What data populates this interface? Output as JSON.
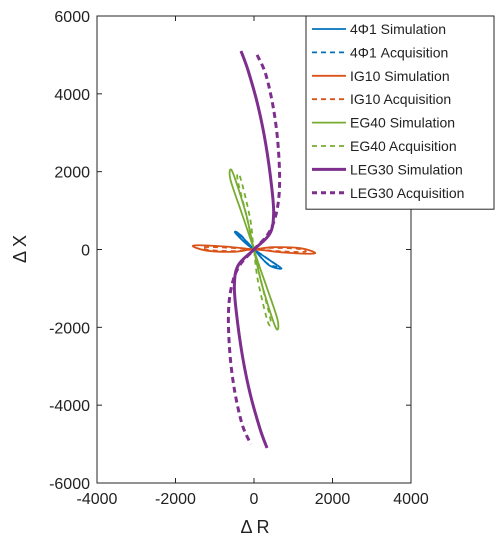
{
  "chart_data": {
    "type": "line",
    "title": "",
    "xlabel": "Δ R",
    "ylabel": "Δ X",
    "xlim": [
      -4000,
      4000
    ],
    "ylim": [
      -6000,
      6000
    ],
    "xticks": [
      -4000,
      -2000,
      0,
      2000,
      4000
    ],
    "yticks": [
      -6000,
      -4000,
      -2000,
      0,
      2000,
      4000,
      6000
    ],
    "xtick_labels": [
      "-4000",
      "-2000",
      "0",
      "2000",
      "4000"
    ],
    "ytick_labels": [
      "-6000",
      "-4000",
      "-2000",
      "0",
      "2000",
      "4000",
      "6000"
    ],
    "grid": false,
    "legend_position": "top-right",
    "series": [
      {
        "name": "4Φ1 Simulation",
        "color": "#0072BD",
        "dash": "solid",
        "x": [
          0,
          -200,
          -480,
          -380,
          0,
          380,
          700,
          420,
          0
        ],
        "y": [
          0,
          150,
          430,
          400,
          0,
          -400,
          -490,
          -290,
          0
        ]
      },
      {
        "name": "4Φ1 Acquisition",
        "color": "#0072BD",
        "dash": "dashed",
        "x": [
          0,
          -180,
          -420,
          -340,
          0,
          340,
          620,
          380,
          0
        ],
        "y": [
          0,
          140,
          390,
          370,
          0,
          -360,
          -440,
          -260,
          0
        ]
      },
      {
        "name": "IG10 Simulation",
        "color": "#D95319",
        "dash": "solid",
        "x": [
          0,
          -800,
          -1550,
          -1200,
          -500,
          0,
          800,
          1550,
          1200,
          500,
          0
        ],
        "y": [
          0,
          80,
          100,
          -30,
          -60,
          0,
          -80,
          -100,
          30,
          60,
          0
        ]
      },
      {
        "name": "IG10 Acquisition",
        "color": "#D95319",
        "dash": "dashed",
        "x": [
          0,
          -700,
          -1300,
          -1100,
          -400,
          0,
          700,
          1300,
          1100,
          400,
          0
        ],
        "y": [
          0,
          50,
          60,
          -20,
          -40,
          0,
          -50,
          -60,
          20,
          40,
          0
        ]
      },
      {
        "name": "EG40 Simulation",
        "color": "#77AC30",
        "dash": "solid",
        "x": [
          0,
          -300,
          -600,
          -550,
          -200,
          0,
          300,
          600,
          550,
          200,
          0
        ],
        "y": [
          0,
          900,
          1800,
          2000,
          900,
          0,
          -900,
          -1800,
          -2000,
          -900,
          0
        ]
      },
      {
        "name": "EG40 Acquisition",
        "color": "#77AC30",
        "dash": "dashed",
        "x": [
          0,
          -200,
          -420,
          -350,
          -100,
          0,
          200,
          420,
          350,
          100,
          0
        ],
        "y": [
          0,
          900,
          1800,
          1850,
          800,
          0,
          -900,
          -1800,
          -1850,
          -800,
          0
        ]
      },
      {
        "name": "LEG30 Simulation",
        "color": "#7E2F8E",
        "dash": "solid",
        "x": [
          -330,
          -150,
          100,
          300,
          450,
          500,
          400,
          0,
          -400,
          -500,
          -450,
          -300,
          -100,
          150,
          330
        ],
        "y": [
          5100,
          4600,
          3700,
          2700,
          1600,
          900,
          400,
          0,
          -400,
          -900,
          -1600,
          -2700,
          -3700,
          -4600,
          -5100
        ]
      },
      {
        "name": "LEG30 Acquisition",
        "color": "#7E2F8E",
        "dash": "dashed",
        "x": [
          80,
          300,
          500,
          620,
          650,
          560,
          360,
          0,
          -360,
          -560,
          -650,
          -620,
          -500,
          -300,
          -80
        ],
        "y": [
          5000,
          4500,
          3600,
          2600,
          1600,
          900,
          400,
          0,
          -400,
          -900,
          -1600,
          -2600,
          -3600,
          -4500,
          -5000
        ]
      }
    ]
  }
}
